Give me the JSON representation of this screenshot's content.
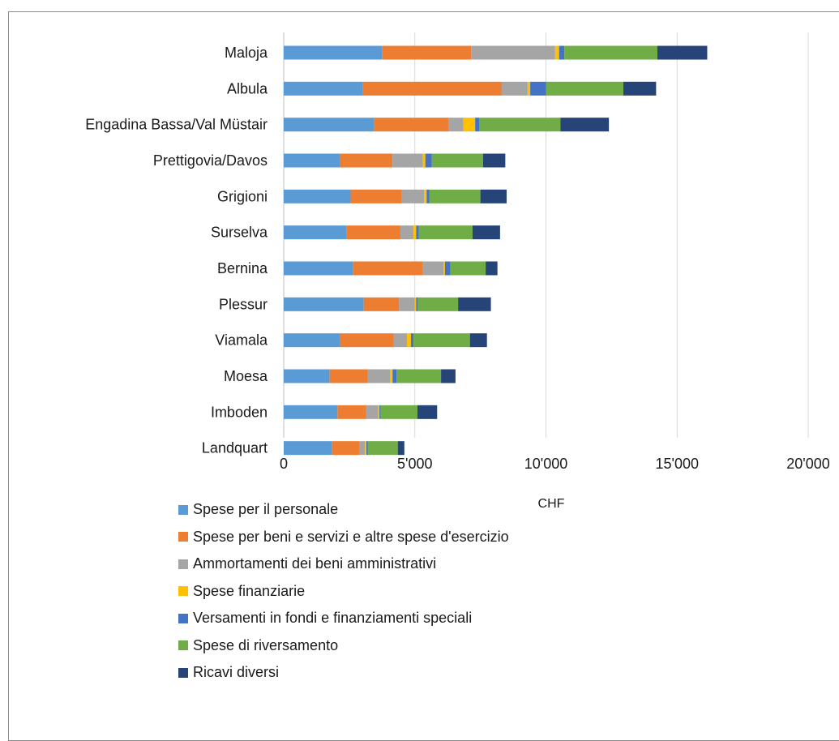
{
  "colors": {
    "series": [
      "#5b9bd5",
      "#ed7d31",
      "#a5a5a5",
      "#ffc000",
      "#4472c4",
      "#70ad47",
      "#264478"
    ],
    "grid": "#d9d9d9",
    "text": "#1a1a1a"
  },
  "chart_data": {
    "type": "bar",
    "orientation": "horizontal",
    "stacked": true,
    "xlabel": "CHF",
    "xlim": [
      0,
      20000
    ],
    "xticks": [
      0,
      5000,
      10000,
      15000,
      20000
    ],
    "xtick_labels": [
      "0",
      "5'000",
      "10'000",
      "15'000",
      "20'000"
    ],
    "grid": true,
    "legend_position": "bottom",
    "categories": [
      "Maloja",
      "Albula",
      "Engadina Bassa/Val Müstair",
      "Prettigovia/Davos",
      "Grigioni",
      "Surselva",
      "Bernina",
      "Plessur",
      "Viamala",
      "Moesa",
      "Imboden",
      "Landquart"
    ],
    "series": [
      {
        "name": "Spese per il personale",
        "values": [
          3750,
          3000,
          3450,
          2150,
          2550,
          2400,
          2650,
          3050,
          2150,
          1750,
          2050,
          1850
        ]
      },
      {
        "name": "Spese per beni e servizi e altre spese d'esercizio",
        "values": [
          3400,
          5300,
          2850,
          2000,
          1950,
          2050,
          2650,
          1350,
          2050,
          1450,
          1100,
          1050
        ]
      },
      {
        "name": "Ammortamenti dei beni amministrativi",
        "values": [
          3200,
          1000,
          550,
          1150,
          850,
          500,
          800,
          600,
          500,
          850,
          450,
          200
        ]
      },
      {
        "name": "Spese finanziarie",
        "values": [
          150,
          100,
          450,
          100,
          100,
          100,
          50,
          50,
          150,
          100,
          50,
          50
        ]
      },
      {
        "name": "Versamenti in fondi e finanziamenti speciali",
        "values": [
          200,
          600,
          150,
          250,
          100,
          100,
          200,
          50,
          100,
          150,
          50,
          50
        ]
      },
      {
        "name": "Spese di riversamento",
        "values": [
          3550,
          2950,
          3100,
          1950,
          1950,
          2050,
          1350,
          1550,
          2150,
          1700,
          1400,
          1150
        ]
      },
      {
        "name": "Ricavi diversi",
        "values": [
          1900,
          1250,
          1850,
          850,
          1000,
          1050,
          450,
          1250,
          650,
          550,
          750,
          250
        ]
      }
    ]
  }
}
